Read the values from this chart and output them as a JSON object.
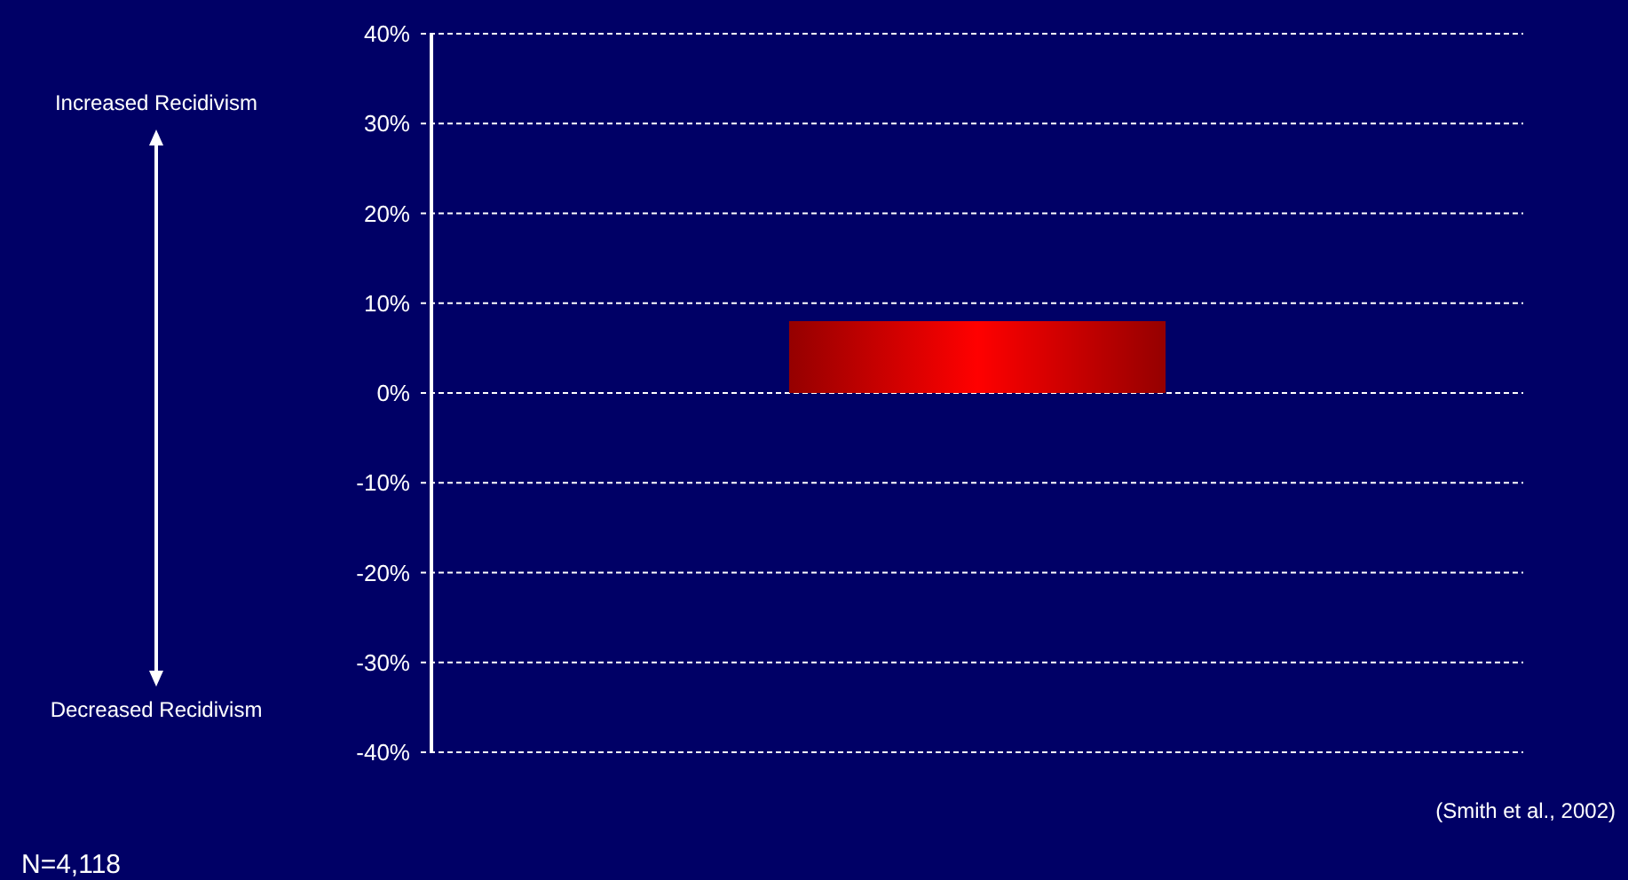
{
  "chart_data": {
    "type": "bar",
    "categories": [
      null
    ],
    "values": [
      8
    ],
    "color": "#ff0000",
    "ylim": [
      -40,
      40
    ],
    "yticks": [
      {
        "value": -40,
        "label": "-40%"
      },
      {
        "value": -30,
        "label": "-30%"
      },
      {
        "value": -20,
        "label": "-20%"
      },
      {
        "value": -10,
        "label": "-10%"
      },
      {
        "value": 0,
        "label": "0%"
      },
      {
        "value": 10,
        "label": "10%"
      },
      {
        "value": 20,
        "label": "20%"
      },
      {
        "value": 30,
        "label": "30%"
      },
      {
        "value": 40,
        "label": "40%"
      }
    ],
    "grid": "y",
    "annotations": [
      "Increased Recidivism",
      "Decreased Recidivism",
      "(Smith et al., 2002)",
      "N=4,118"
    ]
  }
}
